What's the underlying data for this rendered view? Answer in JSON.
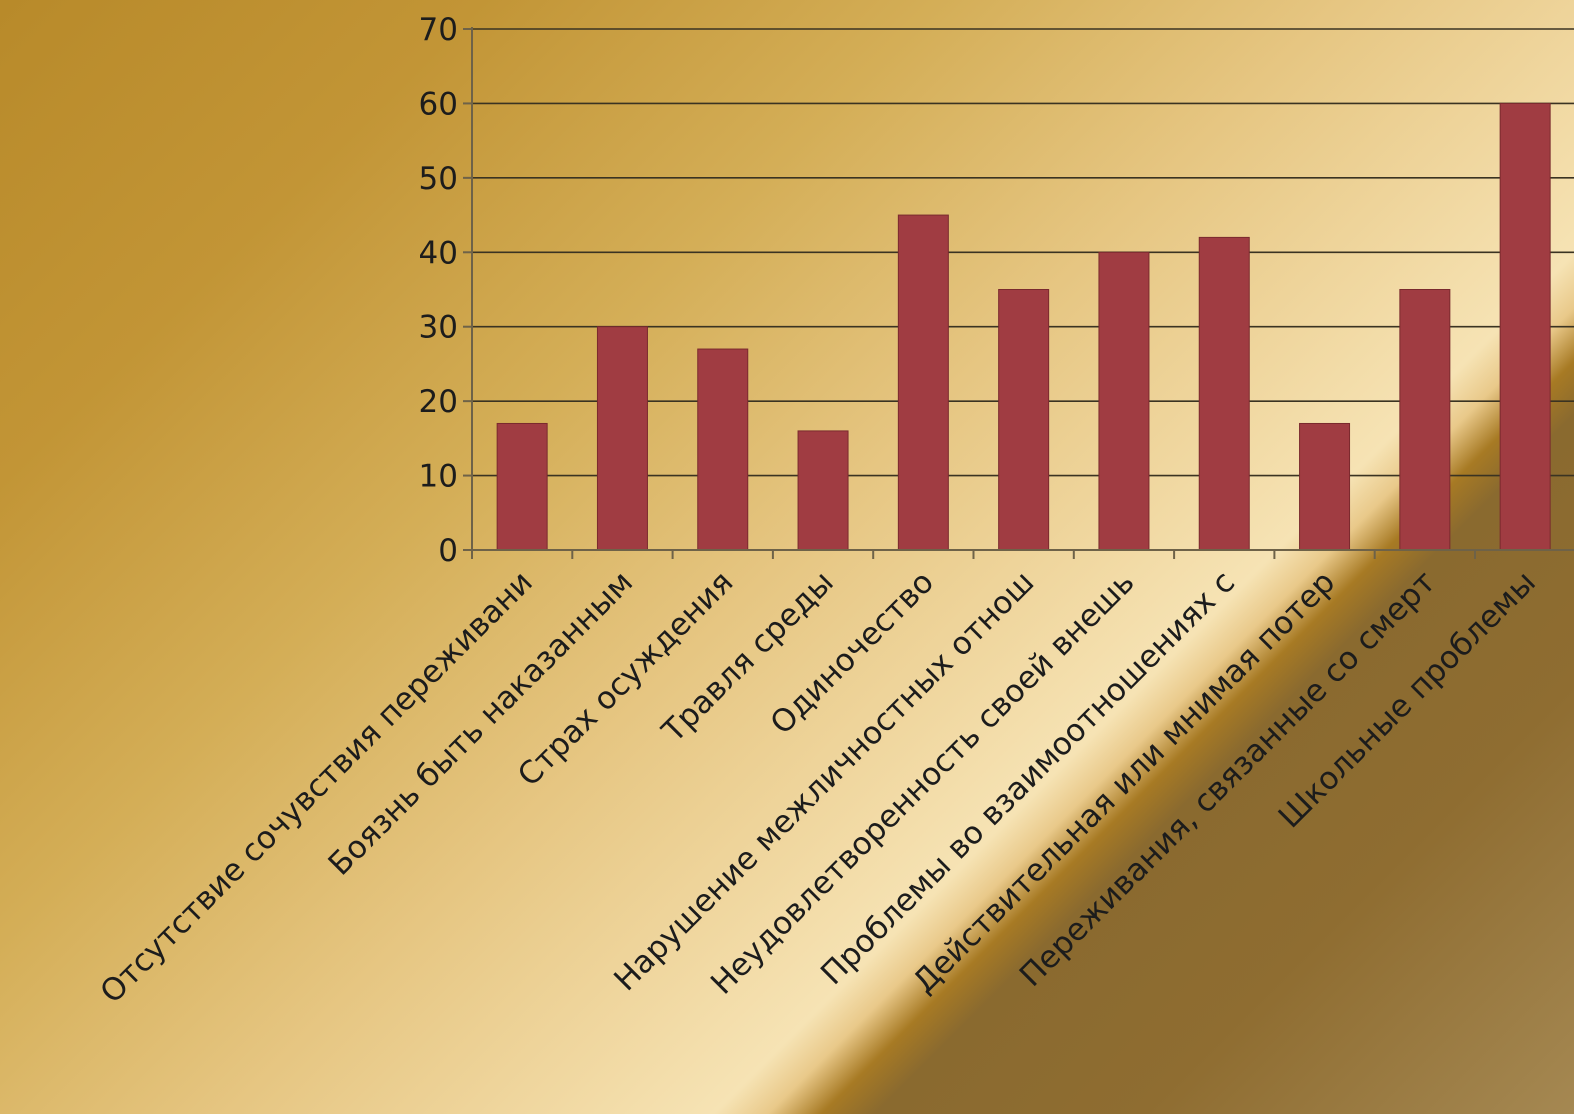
{
  "chart_data": {
    "type": "bar",
    "categories": [
      "Отсутствие сочувствия переживани",
      "Боязнь быть наказанным",
      "Страх осуждения",
      "Травля среды",
      "Одиночество",
      "Нарушение межличностных отнош",
      "Неудовлетворенность своей внешь",
      "Проблемы во взаимоотношениях с",
      "Действительная или мнимая потер",
      "Переживания, связанные со смерт",
      "Школьные проблемы"
    ],
    "values": [
      17,
      30,
      27,
      16,
      45,
      35,
      40,
      42,
      17,
      35,
      60
    ],
    "ylim": [
      0,
      70
    ],
    "yticks": [
      "0",
      "10",
      "20",
      "30",
      "40",
      "50",
      "60",
      "70"
    ],
    "grid": true,
    "bar_color": "#a03c42"
  }
}
